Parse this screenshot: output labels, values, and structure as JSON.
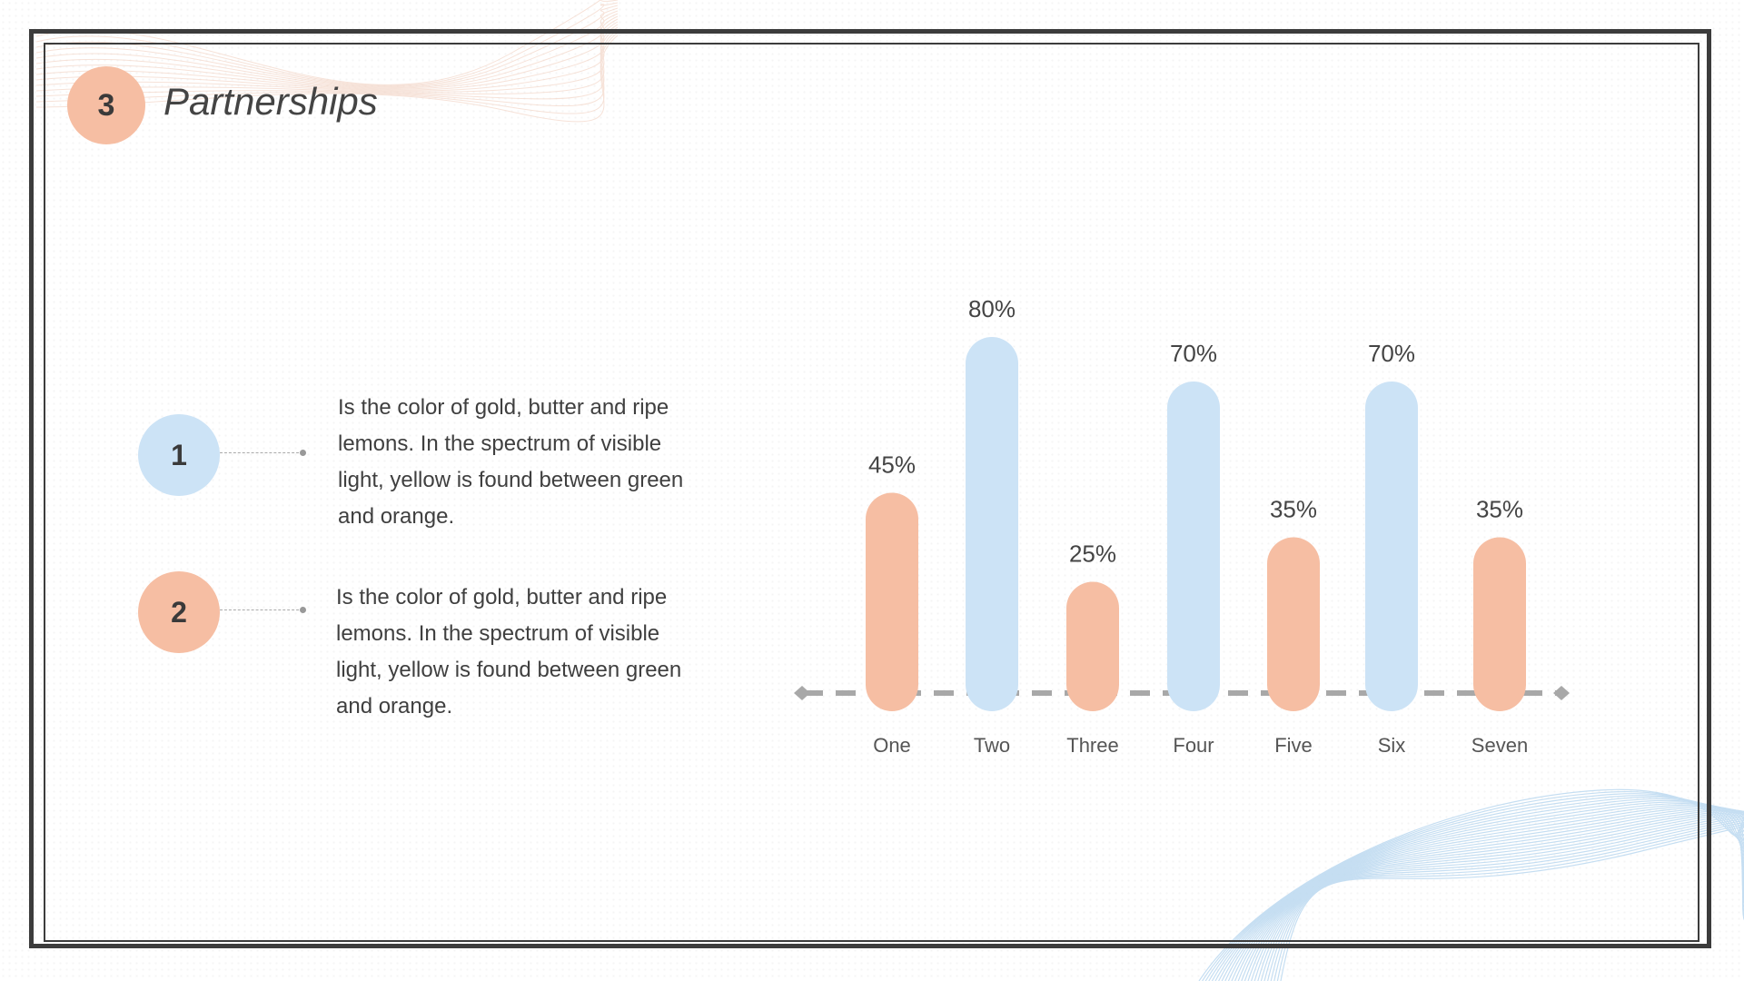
{
  "slide": {
    "number": "3",
    "title": "Partnerships"
  },
  "items": [
    {
      "number": "1",
      "text": "Is the color of gold, butter  and ripe lemons. In the  spectrum of visible light,  yellow is found between  green and orange."
    },
    {
      "number": "2",
      "text": "Is the color of gold, butter  and ripe lemons. In the  spectrum of visible light,  yellow is found between  green and orange."
    }
  ],
  "colors": {
    "peach": "#f6bea3",
    "blue": "#cce3f6",
    "axis": "#a8a8a8",
    "frame": "#3c3c3c"
  },
  "chart_data": {
    "type": "bar",
    "categories": [
      "One",
      "Two",
      "Three",
      "Four",
      "Five",
      "Six",
      "Seven"
    ],
    "values": [
      45,
      80,
      25,
      70,
      35,
      70,
      35
    ],
    "value_labels": [
      "45%",
      "80%",
      "25%",
      "70%",
      "35%",
      "70%",
      "35%"
    ],
    "bar_colors": [
      "#f6bea3",
      "#cce3f6",
      "#f6bea3",
      "#cce3f6",
      "#f6bea3",
      "#cce3f6",
      "#f6bea3"
    ],
    "ylim": [
      0,
      100
    ],
    "title": "",
    "xlabel": "",
    "ylabel": "",
    "grid": false,
    "legend": "none"
  }
}
